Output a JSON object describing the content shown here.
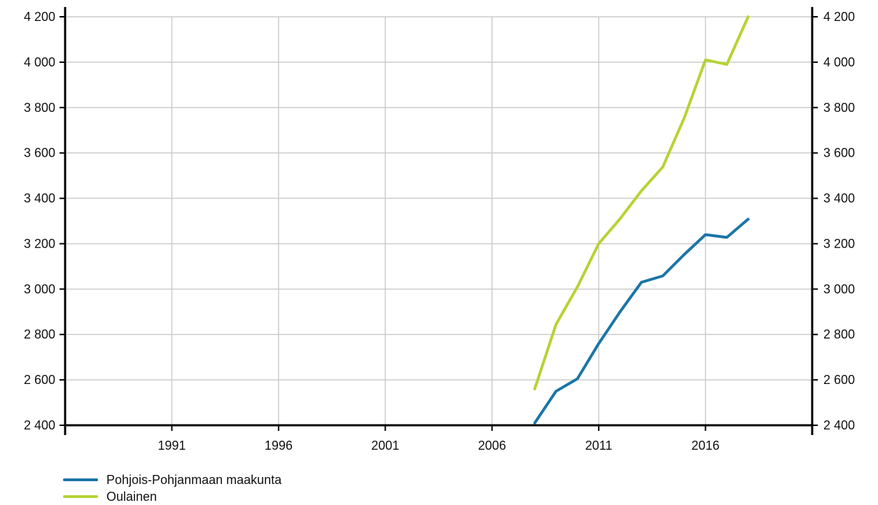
{
  "chart_data": {
    "type": "line",
    "title": "",
    "xlabel": "",
    "ylabel": "",
    "xlim": [
      1986,
      2021
    ],
    "ylim": [
      2400,
      4200
    ],
    "x_ticks": [
      1991,
      1996,
      2001,
      2006,
      2011,
      2016
    ],
    "x_tick_labels": [
      "1991",
      "1996",
      "2001",
      "2006",
      "2011",
      "2016"
    ],
    "y_ticks": [
      2400,
      2600,
      2800,
      3000,
      3200,
      3400,
      3600,
      3800,
      4000,
      4200
    ],
    "y_tick_labels": [
      "2 400",
      "2 600",
      "2 800",
      "3 000",
      "3 200",
      "3 400",
      "3 600",
      "3 800",
      "4 000",
      "4 200"
    ],
    "grid": true,
    "legend_position": "bottom-left",
    "x": [
      2008,
      2009,
      2010,
      2011,
      2012,
      2013,
      2014,
      2015,
      2016,
      2017,
      2018
    ],
    "series": [
      {
        "name": "Pohjois-Pohjanmaan maakunta",
        "color": "#1a75a8",
        "values": [
          2410,
          2550,
          2605,
          2760,
          2900,
          3030,
          3058,
          3152,
          3240,
          3228,
          3308
        ]
      },
      {
        "name": "Oulainen",
        "color": "#b5d334",
        "values": [
          2560,
          2845,
          3010,
          3200,
          3310,
          3433,
          3538,
          3753,
          4010,
          3990,
          4200
        ]
      }
    ]
  }
}
